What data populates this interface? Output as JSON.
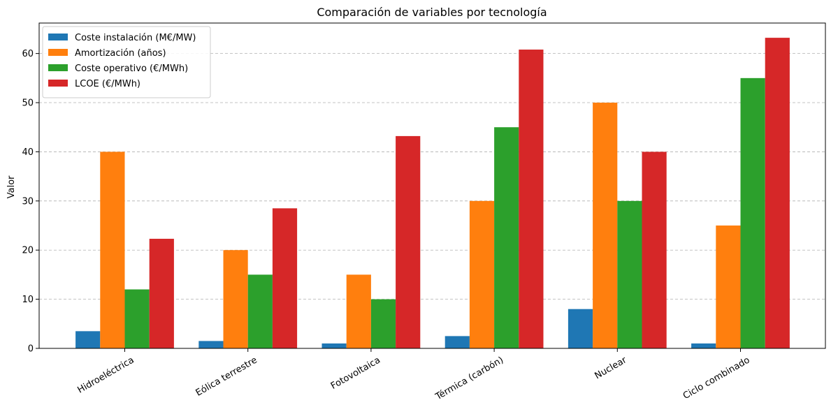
{
  "chart_data": {
    "type": "bar",
    "title": "Comparación de variables por tecnología",
    "xlabel": "",
    "ylabel": "Valor",
    "categories": [
      "Hidroeléctrica",
      "Eólica terrestre",
      "Fotovoltaica",
      "Térmica (carbón)",
      "Nuclear",
      "Ciclo combinado"
    ],
    "series": [
      {
        "name": "Coste instalación (M€/MW)",
        "color": "#1f77b4",
        "values": [
          3.5,
          1.5,
          1.0,
          2.5,
          8.0,
          1.0
        ]
      },
      {
        "name": "Amortización (años)",
        "color": "#ff7f0e",
        "values": [
          40,
          20,
          15,
          30,
          50,
          25
        ]
      },
      {
        "name": "Coste operativo (€/MWh)",
        "color": "#2ca02c",
        "values": [
          12,
          15,
          10,
          45,
          30,
          55
        ]
      },
      {
        "name": "LCOE (€/MWh)",
        "color": "#d62728",
        "values": [
          22.3,
          28.5,
          43.2,
          60.8,
          40.0,
          63.2
        ]
      }
    ],
    "ylim": [
      0,
      66.2
    ],
    "yticks": [
      0,
      10,
      20,
      30,
      40,
      50,
      60
    ],
    "grid": "y-dashed",
    "legend_position": "top-left"
  }
}
